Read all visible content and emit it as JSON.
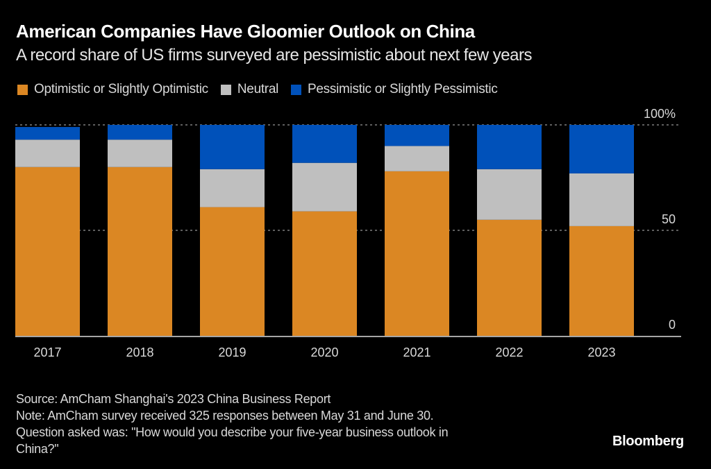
{
  "header": {
    "title": "American Companies Have Gloomier Outlook on China",
    "subtitle": "A record share of US firms surveyed are pessimistic about next few years"
  },
  "legend": [
    {
      "label": "Optimistic or Slightly Optimistic",
      "color": "#db8723"
    },
    {
      "label": "Neutral",
      "color": "#bfbfbf"
    },
    {
      "label": "Pessimistic or Slightly Pessimistic",
      "color": "#0051ba"
    }
  ],
  "chart_data": {
    "type": "bar",
    "stacked": true,
    "title": "American Companies Have Gloomier Outlook on China",
    "subtitle": "A record share of US firms surveyed are pessimistic about next few years",
    "xlabel": "",
    "ylabel": "",
    "categories": [
      "2017",
      "2018",
      "2019",
      "2020",
      "2021",
      "2022",
      "2023"
    ],
    "series": [
      {
        "name": "Optimistic or Slightly Optimistic",
        "color": "#db8723",
        "values": [
          80,
          80,
          61,
          59,
          78,
          55,
          52
        ]
      },
      {
        "name": "Neutral",
        "color": "#bfbfbf",
        "values": [
          13,
          13,
          18,
          23,
          12,
          24,
          25
        ]
      },
      {
        "name": "Pessimistic or Slightly Pessimistic",
        "color": "#0051ba",
        "values": [
          6,
          7,
          21,
          18,
          10,
          21,
          23
        ]
      }
    ],
    "ylim": [
      0,
      100
    ],
    "yticks": [
      {
        "value": 0,
        "label": "0"
      },
      {
        "value": 50,
        "label": "50"
      },
      {
        "value": 100,
        "label": "100%"
      }
    ],
    "grid": true,
    "legend_position": "top-left",
    "axis_side": "right"
  },
  "footer": {
    "source": "Source: AmCham Shanghai's 2023 China Business Report",
    "note_line1": "Note: AmCham survey received 325 responses between May 31 and June 30.",
    "note_line2": "Question asked was: \"How would you describe your five-year business outlook in",
    "note_line3": "China?\""
  },
  "branding": {
    "logo": "Bloomberg"
  }
}
